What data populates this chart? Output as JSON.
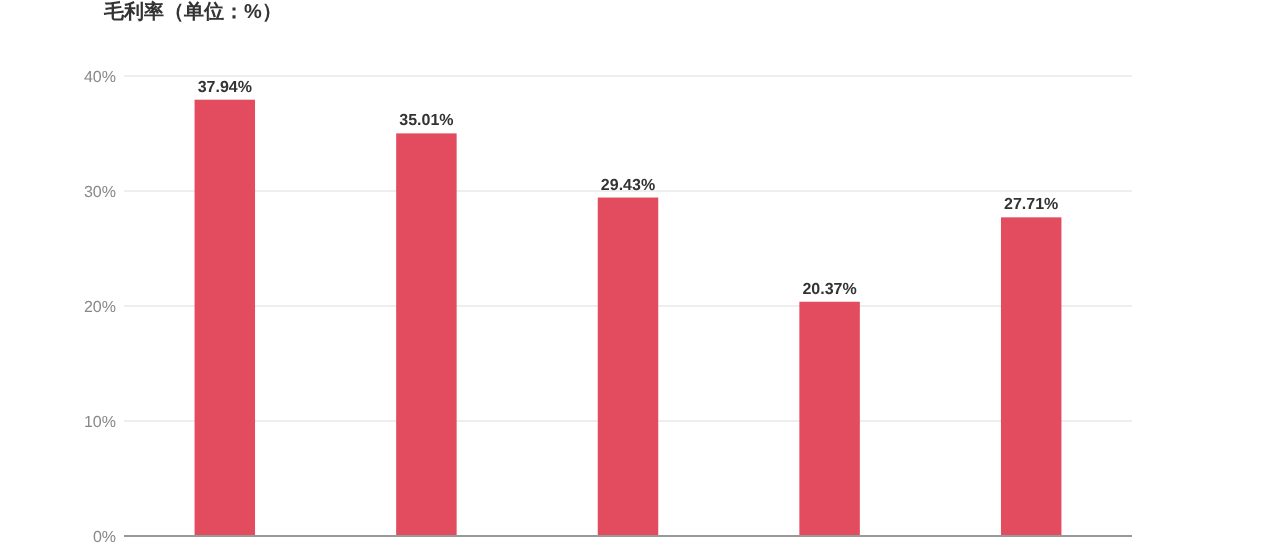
{
  "chart_data": {
    "type": "bar",
    "title": "毛利率（单位：%）",
    "categories": [
      null,
      null,
      null,
      null,
      null
    ],
    "series": [
      {
        "color": "#e34b5f",
        "values": [
          37.94,
          35.01,
          29.43,
          20.37,
          27.71
        ],
        "value_labels": [
          "37.94%",
          "35.01%",
          "29.43%",
          "20.37%",
          "27.71%"
        ]
      }
    ],
    "ylim": [
      0,
      40
    ],
    "yticks": [
      {
        "value": 0,
        "label": "0%"
      },
      {
        "value": 10,
        "label": "10%"
      },
      {
        "value": 20,
        "label": "20%"
      },
      {
        "value": 30,
        "label": "30%"
      },
      {
        "value": 40,
        "label": "40%"
      }
    ],
    "grid": "y"
  }
}
